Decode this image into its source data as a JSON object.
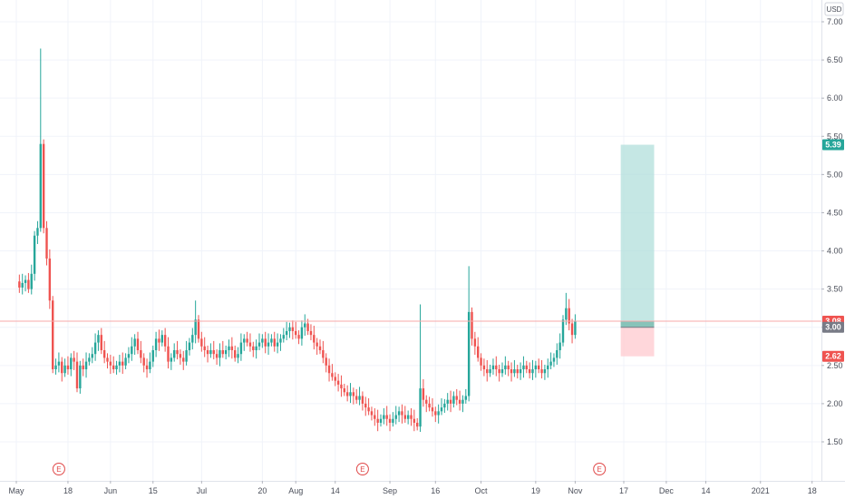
{
  "currency_button": "USD",
  "colors": {
    "up": "#26a69a",
    "down": "#ef5350",
    "grid": "#f0f3fa",
    "target_zone": "#b2dfdb",
    "stop_zone": "#ffcdd2",
    "last_price_line": "#f7a9a9",
    "badge_last": "#ef5350",
    "badge_entry": "#787b86",
    "badge_target": "#26a69a",
    "badge_stop": "#ef5350",
    "earnings": "#e04848"
  },
  "chart_data": {
    "type": "candlestick",
    "ylim": [
      1.25,
      7.25
    ],
    "price_ticks": [
      "1.50",
      "2.00",
      "2.50",
      "3.00",
      "3.50",
      "4.00",
      "4.50",
      "5.00",
      "5.50",
      "6.00",
      "6.50",
      "7.00"
    ],
    "time_labels": [
      "May",
      "18",
      "Jun",
      "15",
      "Jul",
      "20",
      "Aug",
      "14",
      "Sep",
      "16",
      "Oct",
      "19",
      "Nov",
      "17",
      "Dec",
      "14",
      "2021",
      "18"
    ],
    "time_label_days": [
      0,
      17,
      31,
      45,
      61,
      81,
      92,
      105,
      123,
      138,
      153,
      171,
      184,
      200,
      214,
      227,
      245,
      262
    ],
    "price_badges": {
      "target": "5.39",
      "last": "3.08",
      "entry": "3.00",
      "stop": "2.62"
    },
    "position": {
      "entry": 3.0,
      "target": 5.39,
      "stop": 2.62,
      "start_day": 199,
      "end_day": 210
    },
    "earnings_marker": "E",
    "earnings_days": [
      14,
      114,
      192
    ],
    "close_path": [
      {
        "d": 0,
        "v": 3.6
      },
      {
        "d": 1,
        "v": 3.52
      },
      {
        "d": 2,
        "v": 3.58
      },
      {
        "d": 3,
        "v": 3.62
      },
      {
        "d": 4,
        "v": 3.5
      },
      {
        "d": 5,
        "v": 3.7
      },
      {
        "d": 6,
        "v": 4.2
      },
      {
        "d": 7,
        "v": 4.3
      },
      {
        "d": 8,
        "v": 5.4
      },
      {
        "d": 9,
        "v": 4.3
      },
      {
        "d": 10,
        "v": 3.9
      },
      {
        "d": 11,
        "v": 3.35
      },
      {
        "d": 12,
        "v": 2.45
      },
      {
        "d": 13,
        "v": 2.5
      },
      {
        "d": 14,
        "v": 2.55
      },
      {
        "d": 15,
        "v": 2.4
      },
      {
        "d": 16,
        "v": 2.5
      },
      {
        "d": 17,
        "v": 2.45
      },
      {
        "d": 18,
        "v": 2.6
      },
      {
        "d": 19,
        "v": 2.55
      },
      {
        "d": 20,
        "v": 2.2
      },
      {
        "d": 21,
        "v": 2.5
      },
      {
        "d": 22,
        "v": 2.45
      },
      {
        "d": 23,
        "v": 2.55
      },
      {
        "d": 24,
        "v": 2.6
      },
      {
        "d": 25,
        "v": 2.65
      },
      {
        "d": 26,
        "v": 2.8
      },
      {
        "d": 27,
        "v": 2.9
      },
      {
        "d": 28,
        "v": 2.7
      },
      {
        "d": 29,
        "v": 2.6
      },
      {
        "d": 30,
        "v": 2.55
      },
      {
        "d": 31,
        "v": 2.5
      },
      {
        "d": 32,
        "v": 2.45
      },
      {
        "d": 33,
        "v": 2.5
      },
      {
        "d": 34,
        "v": 2.55
      },
      {
        "d": 35,
        "v": 2.5
      },
      {
        "d": 36,
        "v": 2.6
      },
      {
        "d": 37,
        "v": 2.65
      },
      {
        "d": 38,
        "v": 2.75
      },
      {
        "d": 39,
        "v": 2.85
      },
      {
        "d": 40,
        "v": 2.7
      },
      {
        "d": 41,
        "v": 2.6
      },
      {
        "d": 42,
        "v": 2.5
      },
      {
        "d": 43,
        "v": 2.45
      },
      {
        "d": 44,
        "v": 2.55
      },
      {
        "d": 45,
        "v": 2.7
      },
      {
        "d": 46,
        "v": 2.85
      },
      {
        "d": 47,
        "v": 2.8
      },
      {
        "d": 48,
        "v": 2.9
      },
      {
        "d": 49,
        "v": 2.75
      },
      {
        "d": 50,
        "v": 2.55
      },
      {
        "d": 51,
        "v": 2.6
      },
      {
        "d": 52,
        "v": 2.7
      },
      {
        "d": 53,
        "v": 2.65
      },
      {
        "d": 54,
        "v": 2.6
      },
      {
        "d": 55,
        "v": 2.55
      },
      {
        "d": 56,
        "v": 2.7
      },
      {
        "d": 57,
        "v": 2.8
      },
      {
        "d": 58,
        "v": 2.9
      },
      {
        "d": 59,
        "v": 3.1
      },
      {
        "d": 60,
        "v": 2.85
      },
      {
        "d": 61,
        "v": 2.75
      },
      {
        "d": 62,
        "v": 2.7
      },
      {
        "d": 63,
        "v": 2.65
      },
      {
        "d": 64,
        "v": 2.7
      },
      {
        "d": 65,
        "v": 2.65
      },
      {
        "d": 66,
        "v": 2.6
      },
      {
        "d": 67,
        "v": 2.7
      },
      {
        "d": 68,
        "v": 2.65
      },
      {
        "d": 69,
        "v": 2.7
      },
      {
        "d": 70,
        "v": 2.75
      },
      {
        "d": 71,
        "v": 2.7
      },
      {
        "d": 72,
        "v": 2.6
      },
      {
        "d": 73,
        "v": 2.65
      },
      {
        "d": 74,
        "v": 2.8
      },
      {
        "d": 75,
        "v": 2.85
      },
      {
        "d": 76,
        "v": 2.8
      },
      {
        "d": 77,
        "v": 2.75
      },
      {
        "d": 78,
        "v": 2.7
      },
      {
        "d": 79,
        "v": 2.75
      },
      {
        "d": 80,
        "v": 2.8
      },
      {
        "d": 81,
        "v": 2.85
      },
      {
        "d": 82,
        "v": 2.75
      },
      {
        "d": 83,
        "v": 2.8
      },
      {
        "d": 84,
        "v": 2.85
      },
      {
        "d": 85,
        "v": 2.75
      },
      {
        "d": 86,
        "v": 2.8
      },
      {
        "d": 87,
        "v": 2.85
      },
      {
        "d": 88,
        "v": 2.9
      },
      {
        "d": 89,
        "v": 2.95
      },
      {
        "d": 90,
        "v": 3.0
      },
      {
        "d": 91,
        "v": 2.95
      },
      {
        "d": 92,
        "v": 2.9
      },
      {
        "d": 93,
        "v": 2.85
      },
      {
        "d": 94,
        "v": 3.0
      },
      {
        "d": 95,
        "v": 3.05
      },
      {
        "d": 96,
        "v": 2.95
      },
      {
        "d": 97,
        "v": 2.9
      },
      {
        "d": 98,
        "v": 2.8
      },
      {
        "d": 99,
        "v": 2.75
      },
      {
        "d": 100,
        "v": 2.7
      },
      {
        "d": 101,
        "v": 2.6
      },
      {
        "d": 102,
        "v": 2.5
      },
      {
        "d": 103,
        "v": 2.4
      },
      {
        "d": 104,
        "v": 2.35
      },
      {
        "d": 105,
        "v": 2.3
      },
      {
        "d": 106,
        "v": 2.25
      },
      {
        "d": 107,
        "v": 2.2
      },
      {
        "d": 108,
        "v": 2.15
      },
      {
        "d": 109,
        "v": 2.1
      },
      {
        "d": 110,
        "v": 2.15
      },
      {
        "d": 111,
        "v": 2.1
      },
      {
        "d": 112,
        "v": 2.05
      },
      {
        "d": 113,
        "v": 2.1
      },
      {
        "d": 114,
        "v": 2.0
      },
      {
        "d": 115,
        "v": 1.95
      },
      {
        "d": 116,
        "v": 1.9
      },
      {
        "d": 117,
        "v": 1.85
      },
      {
        "d": 118,
        "v": 1.8
      },
      {
        "d": 119,
        "v": 1.75
      },
      {
        "d": 120,
        "v": 1.8
      },
      {
        "d": 121,
        "v": 1.85
      },
      {
        "d": 122,
        "v": 1.8
      },
      {
        "d": 123,
        "v": 1.75
      },
      {
        "d": 124,
        "v": 1.8
      },
      {
        "d": 125,
        "v": 1.85
      },
      {
        "d": 126,
        "v": 1.9
      },
      {
        "d": 127,
        "v": 1.85
      },
      {
        "d": 128,
        "v": 1.8
      },
      {
        "d": 129,
        "v": 1.85
      },
      {
        "d": 130,
        "v": 1.8
      },
      {
        "d": 131,
        "v": 1.75
      },
      {
        "d": 132,
        "v": 1.7
      },
      {
        "d": 133,
        "v": 2.2
      },
      {
        "d": 134,
        "v": 2.05
      },
      {
        "d": 135,
        "v": 2.0
      },
      {
        "d": 136,
        "v": 1.95
      },
      {
        "d": 137,
        "v": 1.9
      },
      {
        "d": 138,
        "v": 1.85
      },
      {
        "d": 139,
        "v": 1.9
      },
      {
        "d": 140,
        "v": 1.95
      },
      {
        "d": 141,
        "v": 2.0
      },
      {
        "d": 142,
        "v": 2.05
      },
      {
        "d": 143,
        "v": 2.0
      },
      {
        "d": 144,
        "v": 2.1
      },
      {
        "d": 145,
        "v": 2.05
      },
      {
        "d": 146,
        "v": 2.0
      },
      {
        "d": 147,
        "v": 2.05
      },
      {
        "d": 148,
        "v": 2.1
      },
      {
        "d": 149,
        "v": 3.2
      },
      {
        "d": 150,
        "v": 2.85
      },
      {
        "d": 151,
        "v": 2.75
      },
      {
        "d": 152,
        "v": 2.6
      },
      {
        "d": 153,
        "v": 2.5
      },
      {
        "d": 154,
        "v": 2.45
      },
      {
        "d": 155,
        "v": 2.4
      },
      {
        "d": 156,
        "v": 2.45
      },
      {
        "d": 157,
        "v": 2.5
      },
      {
        "d": 158,
        "v": 2.45
      },
      {
        "d": 159,
        "v": 2.4
      },
      {
        "d": 160,
        "v": 2.45
      },
      {
        "d": 161,
        "v": 2.5
      },
      {
        "d": 162,
        "v": 2.45
      },
      {
        "d": 163,
        "v": 2.4
      },
      {
        "d": 164,
        "v": 2.45
      },
      {
        "d": 165,
        "v": 2.4
      },
      {
        "d": 166,
        "v": 2.45
      },
      {
        "d": 167,
        "v": 2.5
      },
      {
        "d": 168,
        "v": 2.45
      },
      {
        "d": 169,
        "v": 2.4
      },
      {
        "d": 170,
        "v": 2.45
      },
      {
        "d": 171,
        "v": 2.5
      },
      {
        "d": 172,
        "v": 2.45
      },
      {
        "d": 173,
        "v": 2.4
      },
      {
        "d": 174,
        "v": 2.45
      },
      {
        "d": 175,
        "v": 2.5
      },
      {
        "d": 176,
        "v": 2.55
      },
      {
        "d": 177,
        "v": 2.6
      },
      {
        "d": 178,
        "v": 2.7
      },
      {
        "d": 179,
        "v": 2.8
      },
      {
        "d": 180,
        "v": 3.1
      },
      {
        "d": 181,
        "v": 3.25
      },
      {
        "d": 182,
        "v": 3.05
      },
      {
        "d": 183,
        "v": 2.9
      },
      {
        "d": 184,
        "v": 3.08
      }
    ]
  }
}
